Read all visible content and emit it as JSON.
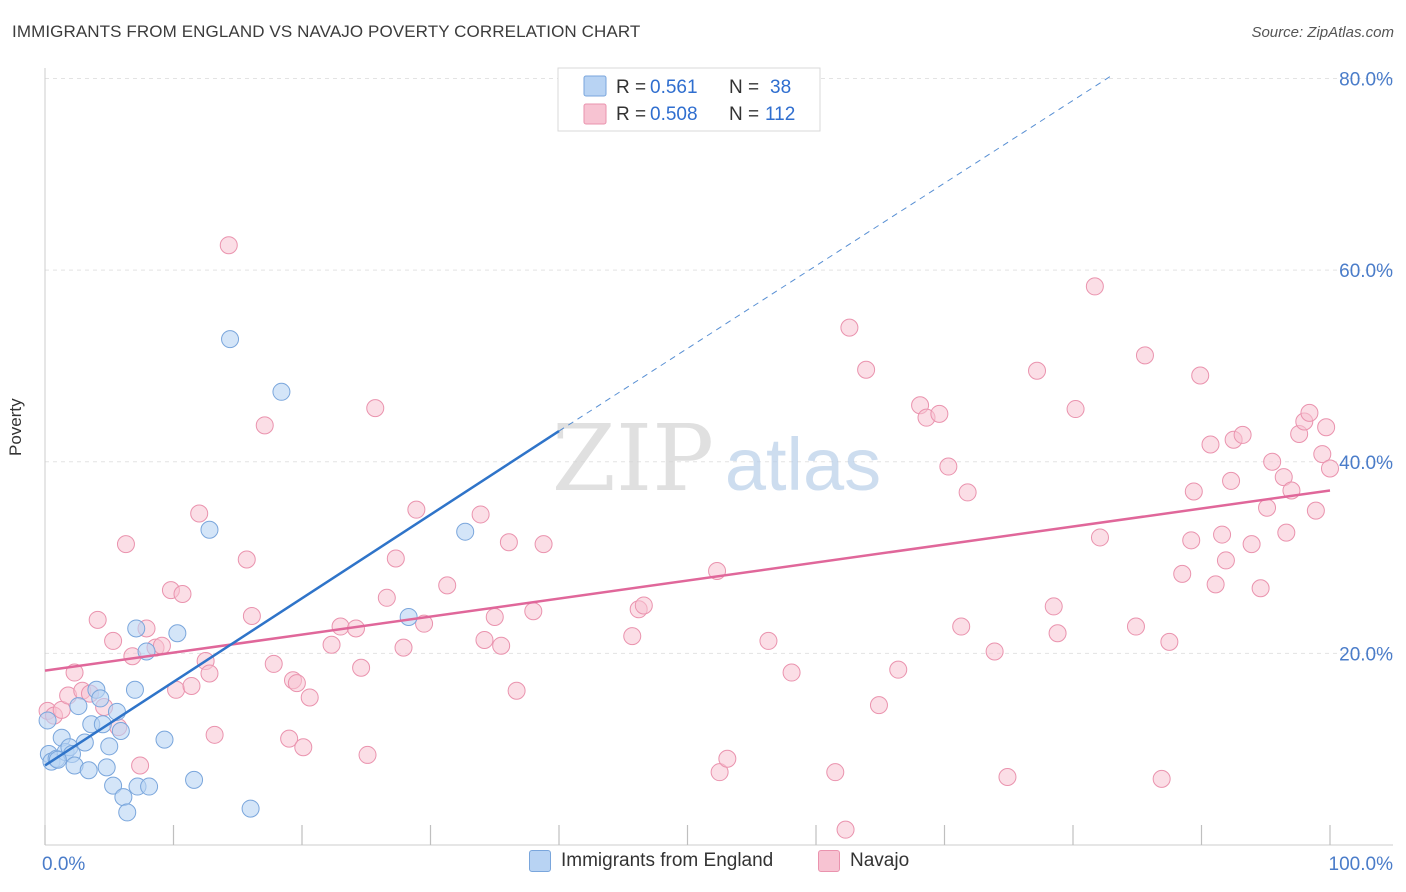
{
  "header": {
    "title": "IMMIGRANTS FROM ENGLAND VS NAVAJO POVERTY CORRELATION CHART",
    "source": "Source: ZipAtlas.com"
  },
  "watermark": {
    "zip": "ZIP",
    "atlas": "atlas"
  },
  "colors": {
    "blue_fill": "#b8d3f3",
    "blue_stroke": "#7aa6dc",
    "blue_line": "#2f74c9",
    "pink_fill": "#f7c3d2",
    "pink_stroke": "#ea93ae",
    "pink_line": "#e0679a",
    "tick_text": "#4a7cc9",
    "grid": "#e3e3e3"
  },
  "legend": {
    "rows": [
      {
        "r_label": "R =",
        "r_value": "0.561",
        "n_label": "N =",
        "n_value": "38"
      },
      {
        "r_label": "R =",
        "r_value": "0.508",
        "n_label": "N =",
        "n_value": "112"
      }
    ]
  },
  "bottom_legend": {
    "series1": "Immigrants from England",
    "series2": "Navajo"
  },
  "chart_data": {
    "type": "scatter",
    "title": "IMMIGRANTS FROM ENGLAND VS NAVAJO POVERTY CORRELATION CHART",
    "xlabel": "",
    "ylabel": "Poverty",
    "xlim": [
      0,
      100
    ],
    "ylim": [
      0,
      80
    ],
    "x_tick_labels": [
      "0.0%",
      "100.0%"
    ],
    "y_tick_labels": [
      "20.0%",
      "40.0%",
      "60.0%",
      "80.0%"
    ],
    "y_ticks": [
      20,
      40,
      60,
      80
    ],
    "grid": "horizontal dashed",
    "legend_position": "top-center",
    "series": [
      {
        "name": "Immigrants from England",
        "r": 0.561,
        "n": 38,
        "trend": {
          "x0": 0,
          "y0": 8.3,
          "x1": 40,
          "y1": 43.2,
          "extend_dashed_to_x": 83,
          "extend_dashed_to_y": 80.3
        },
        "points": [
          [
            0.2,
            13.0
          ],
          [
            0.3,
            9.5
          ],
          [
            0.5,
            8.7
          ],
          [
            0.9,
            9.0
          ],
          [
            1.3,
            11.2
          ],
          [
            1.6,
            9.7
          ],
          [
            1.9,
            10.2
          ],
          [
            2.1,
            9.5
          ],
          [
            2.3,
            8.3
          ],
          [
            2.6,
            14.5
          ],
          [
            3.1,
            10.7
          ],
          [
            3.4,
            7.8
          ],
          [
            3.6,
            12.6
          ],
          [
            4.0,
            16.2
          ],
          [
            4.3,
            15.3
          ],
          [
            4.5,
            12.6
          ],
          [
            4.8,
            8.1
          ],
          [
            5.0,
            10.3
          ],
          [
            5.3,
            6.2
          ],
          [
            5.6,
            13.9
          ],
          [
            5.9,
            11.9
          ],
          [
            6.1,
            5.0
          ],
          [
            6.4,
            3.4
          ],
          [
            7.0,
            16.2
          ],
          [
            7.1,
            22.6
          ],
          [
            7.2,
            6.1
          ],
          [
            8.1,
            6.1
          ],
          [
            9.3,
            11.0
          ],
          [
            10.3,
            22.1
          ],
          [
            11.6,
            6.8
          ],
          [
            12.8,
            32.9
          ],
          [
            14.4,
            52.8
          ],
          [
            16.0,
            3.8
          ],
          [
            18.4,
            47.3
          ],
          [
            28.3,
            23.8
          ],
          [
            32.7,
            32.7
          ],
          [
            7.9,
            20.2
          ],
          [
            1.0,
            8.9
          ]
        ]
      },
      {
        "name": "Navajo",
        "r": 0.508,
        "n": 112,
        "trend": {
          "x0": 0,
          "y0": 18.2,
          "x1": 100,
          "y1": 37.0
        },
        "points": [
          [
            0.2,
            14.0
          ],
          [
            0.7,
            13.5
          ],
          [
            1.3,
            14.1
          ],
          [
            1.8,
            15.6
          ],
          [
            2.3,
            18.0
          ],
          [
            2.9,
            16.1
          ],
          [
            3.5,
            15.8
          ],
          [
            4.1,
            23.5
          ],
          [
            4.6,
            14.4
          ],
          [
            5.3,
            21.3
          ],
          [
            5.7,
            12.3
          ],
          [
            6.3,
            31.4
          ],
          [
            6.8,
            19.7
          ],
          [
            7.4,
            8.3
          ],
          [
            7.9,
            22.6
          ],
          [
            8.6,
            20.6
          ],
          [
            9.1,
            20.8
          ],
          [
            9.8,
            26.6
          ],
          [
            10.2,
            16.2
          ],
          [
            10.7,
            26.2
          ],
          [
            11.4,
            16.6
          ],
          [
            12.0,
            34.6
          ],
          [
            12.5,
            19.2
          ],
          [
            12.8,
            17.9
          ],
          [
            13.2,
            11.5
          ],
          [
            14.3,
            62.6
          ],
          [
            15.7,
            29.8
          ],
          [
            16.1,
            23.9
          ],
          [
            17.1,
            43.8
          ],
          [
            17.8,
            18.9
          ],
          [
            19.0,
            11.1
          ],
          [
            19.3,
            17.2
          ],
          [
            19.6,
            16.9
          ],
          [
            20.1,
            10.2
          ],
          [
            20.6,
            15.4
          ],
          [
            22.3,
            20.9
          ],
          [
            23.0,
            22.8
          ],
          [
            24.2,
            22.6
          ],
          [
            24.6,
            18.5
          ],
          [
            25.1,
            9.4
          ],
          [
            25.7,
            45.6
          ],
          [
            26.6,
            25.8
          ],
          [
            27.3,
            29.9
          ],
          [
            27.9,
            20.6
          ],
          [
            28.9,
            35.0
          ],
          [
            29.5,
            23.1
          ],
          [
            31.3,
            27.1
          ],
          [
            33.9,
            34.5
          ],
          [
            34.2,
            21.4
          ],
          [
            35.0,
            23.8
          ],
          [
            35.5,
            20.8
          ],
          [
            36.1,
            31.6
          ],
          [
            36.7,
            16.1
          ],
          [
            38.0,
            24.4
          ],
          [
            38.8,
            31.4
          ],
          [
            45.7,
            21.8
          ],
          [
            46.2,
            24.6
          ],
          [
            46.6,
            25.0
          ],
          [
            52.3,
            28.6
          ],
          [
            52.5,
            7.6
          ],
          [
            56.3,
            21.3
          ],
          [
            58.1,
            18.0
          ],
          [
            61.5,
            7.6
          ],
          [
            62.3,
            1.6
          ],
          [
            62.6,
            54.0
          ],
          [
            63.9,
            49.6
          ],
          [
            64.9,
            14.6
          ],
          [
            66.4,
            18.3
          ],
          [
            68.1,
            45.9
          ],
          [
            68.6,
            44.6
          ],
          [
            69.6,
            45.0
          ],
          [
            70.3,
            39.5
          ],
          [
            71.3,
            22.8
          ],
          [
            71.8,
            36.8
          ],
          [
            73.9,
            20.2
          ],
          [
            74.9,
            7.1
          ],
          [
            77.2,
            49.5
          ],
          [
            78.5,
            24.9
          ],
          [
            78.8,
            22.1
          ],
          [
            80.2,
            45.5
          ],
          [
            81.7,
            58.3
          ],
          [
            82.1,
            32.1
          ],
          [
            84.9,
            22.8
          ],
          [
            85.6,
            51.1
          ],
          [
            86.9,
            6.9
          ],
          [
            87.5,
            21.2
          ],
          [
            88.5,
            28.3
          ],
          [
            89.2,
            31.8
          ],
          [
            89.4,
            36.9
          ],
          [
            89.9,
            49.0
          ],
          [
            90.7,
            41.8
          ],
          [
            91.1,
            27.2
          ],
          [
            91.6,
            32.4
          ],
          [
            91.9,
            29.7
          ],
          [
            92.3,
            38.0
          ],
          [
            92.5,
            42.3
          ],
          [
            93.2,
            42.8
          ],
          [
            93.9,
            31.4
          ],
          [
            94.6,
            26.8
          ],
          [
            95.1,
            35.2
          ],
          [
            95.5,
            40.0
          ],
          [
            96.4,
            38.4
          ],
          [
            96.6,
            32.6
          ],
          [
            97.0,
            37.0
          ],
          [
            97.6,
            42.9
          ],
          [
            98.0,
            44.2
          ],
          [
            98.4,
            45.1
          ],
          [
            98.9,
            34.9
          ],
          [
            99.4,
            40.8
          ],
          [
            99.7,
            43.6
          ],
          [
            100.0,
            39.3
          ],
          [
            53.1,
            9.0
          ]
        ]
      }
    ]
  }
}
